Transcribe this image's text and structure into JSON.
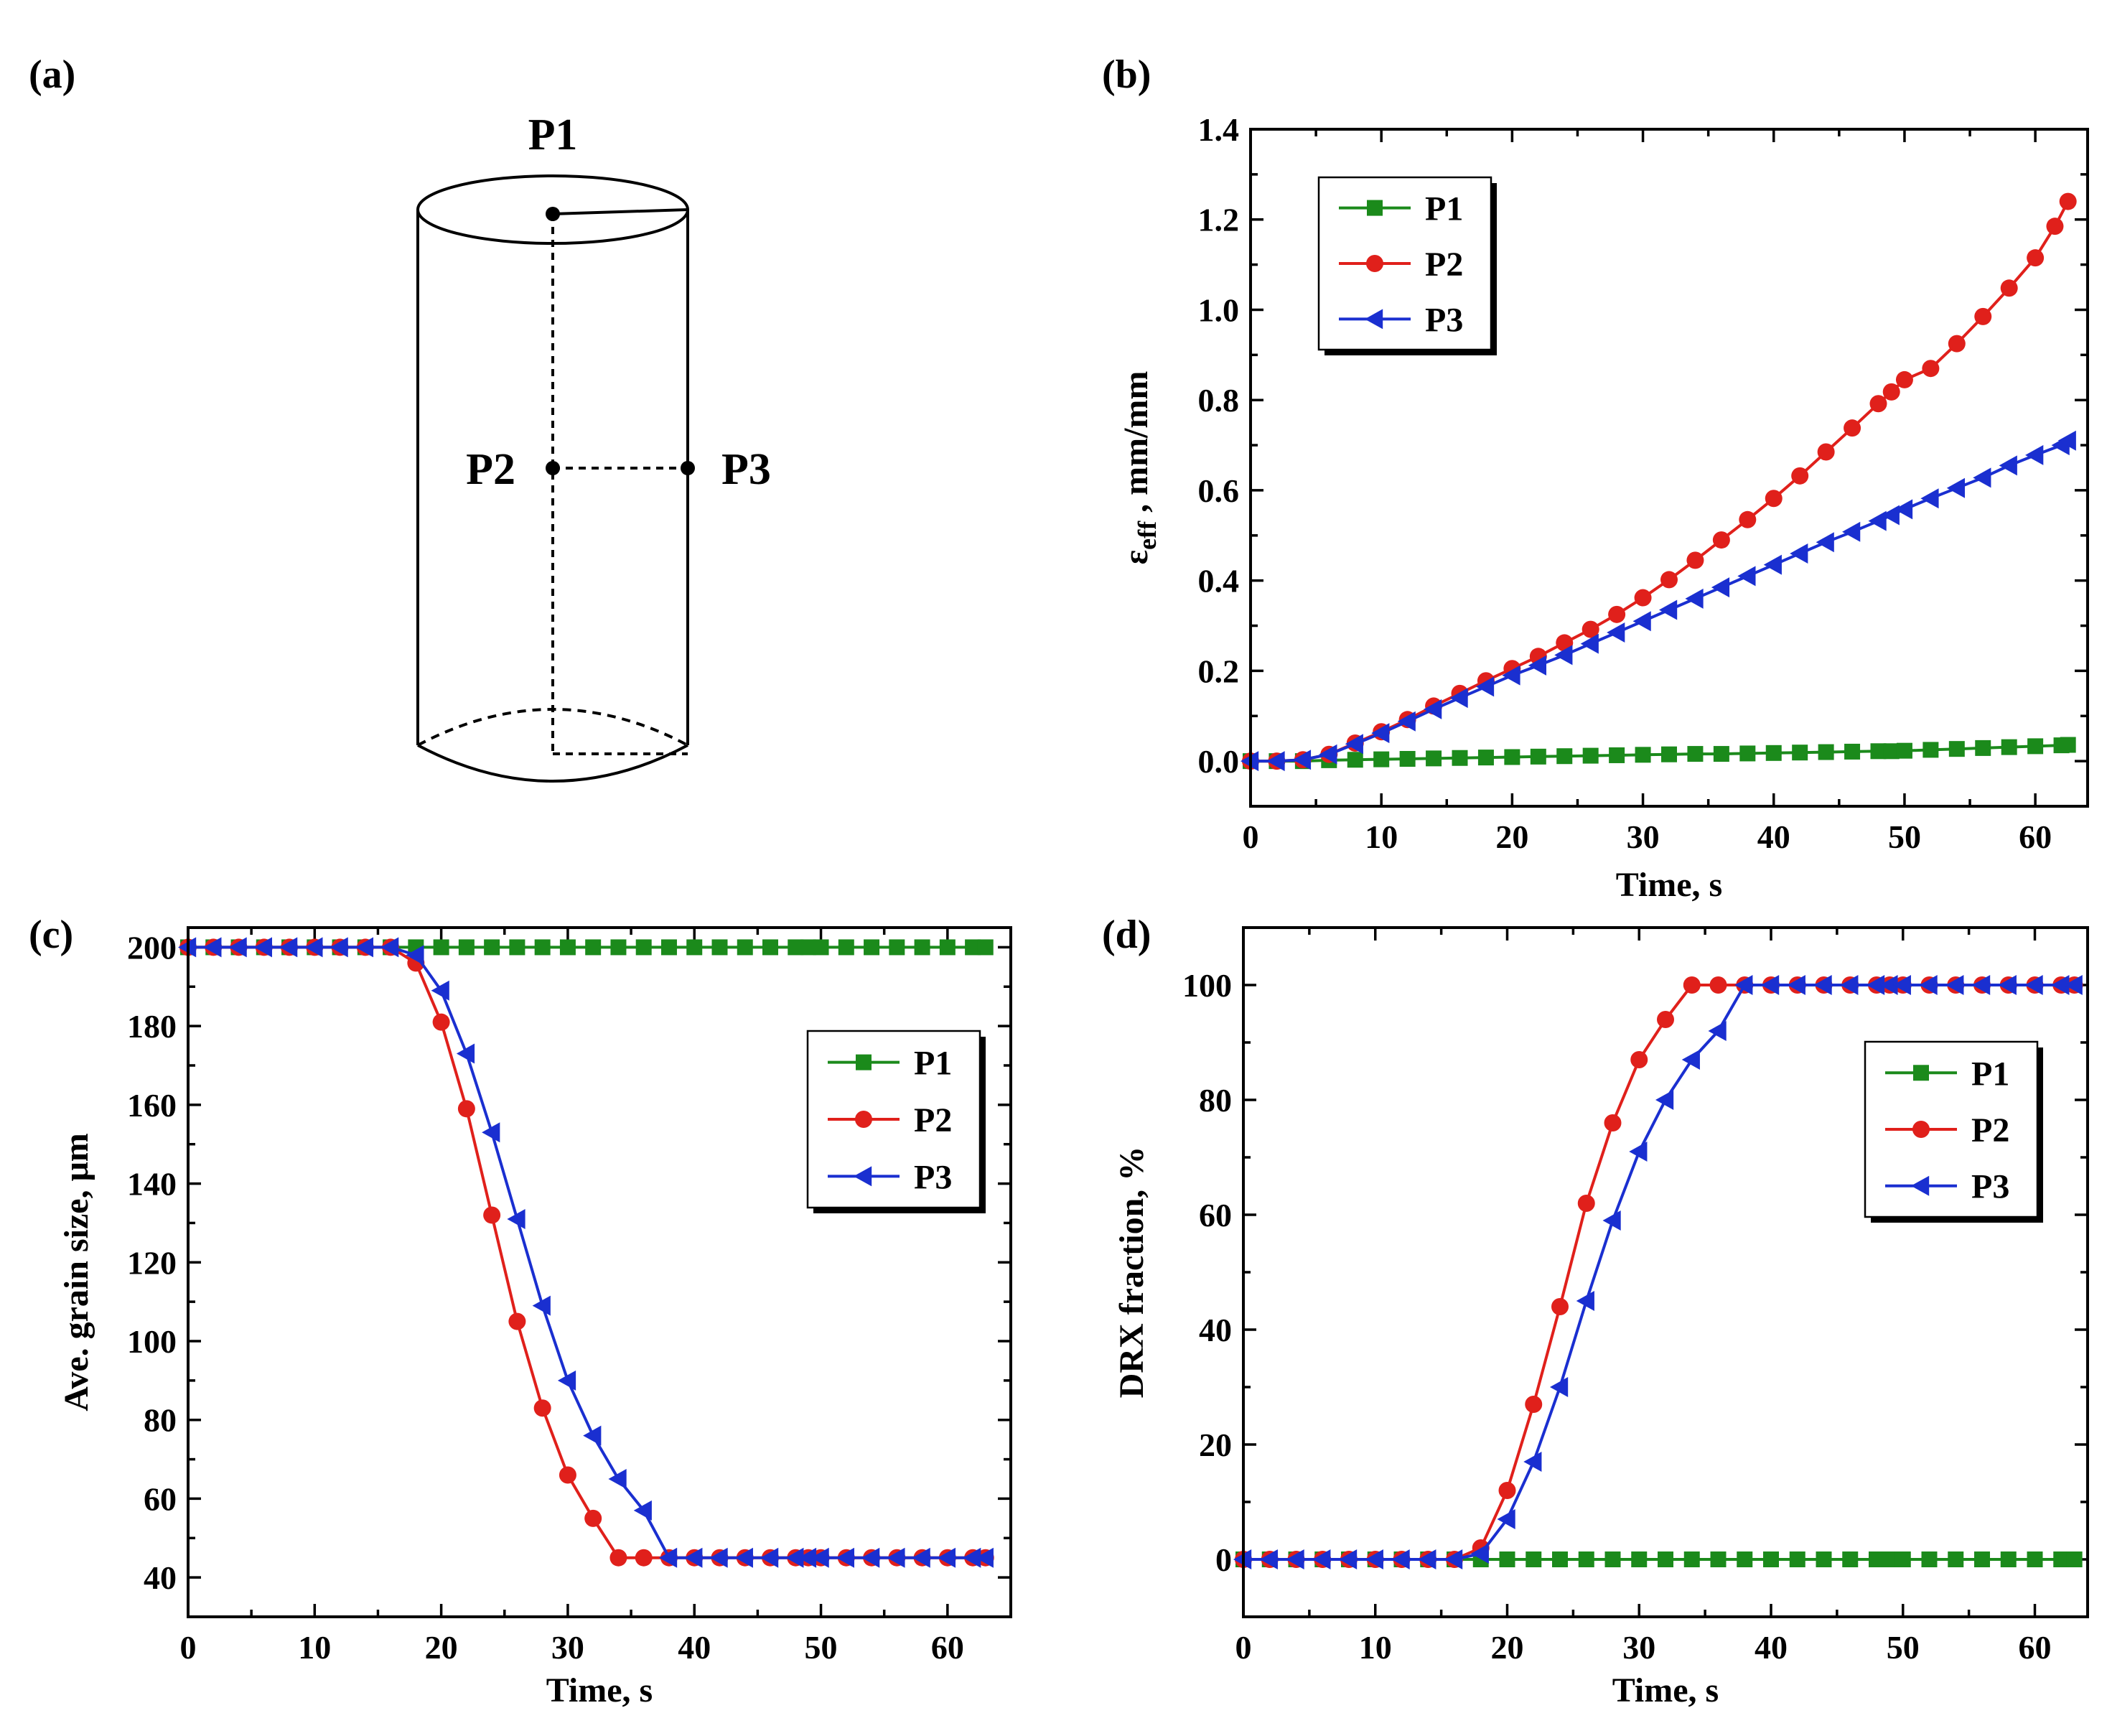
{
  "diagram": {
    "panel_label": "(a)",
    "labels": {
      "p1": "P1",
      "p2": "P2",
      "p3": "P3"
    }
  },
  "colors": {
    "P1": "#1b8a1b",
    "P2": "#e0201b",
    "P3": "#1a2fd0"
  },
  "chart_data": [
    {
      "id": "b",
      "panel_label": "(b)",
      "type": "line",
      "title": "",
      "xlabel": "Time, s",
      "ylabel_main": "ε",
      "ylabel_sub": "eff",
      "ylabel_rest": " , mm/mm",
      "xlim": [
        0,
        64
      ],
      "ylim": [
        -0.1,
        1.4
      ],
      "xticks": [
        0,
        10,
        20,
        30,
        40,
        50,
        60
      ],
      "yticks": [
        0.0,
        0.2,
        0.4,
        0.6,
        0.8,
        1.0,
        1.2,
        1.4
      ],
      "ytick_labels": [
        "0.0",
        "0.2",
        "0.4",
        "0.6",
        "0.8",
        "1.0",
        "1.2",
        "1.4"
      ],
      "legend_position": "top-left",
      "series": [
        {
          "name": "P1",
          "marker": "square",
          "x": [
            0,
            2,
            4,
            6,
            8,
            10,
            12,
            14,
            16,
            18,
            20,
            22,
            24,
            26,
            28,
            30,
            32,
            34,
            36,
            38,
            40,
            42,
            44,
            46,
            48,
            49,
            50,
            52,
            54,
            56,
            58,
            60,
            62,
            62.5
          ],
          "y": [
            0,
            0,
            0,
            0.002,
            0.003,
            0.004,
            0.005,
            0.006,
            0.007,
            0.008,
            0.009,
            0.01,
            0.011,
            0.012,
            0.013,
            0.014,
            0.015,
            0.016,
            0.016,
            0.017,
            0.018,
            0.019,
            0.02,
            0.021,
            0.022,
            0.022,
            0.023,
            0.025,
            0.027,
            0.029,
            0.031,
            0.033,
            0.035,
            0.036
          ]
        },
        {
          "name": "P2",
          "marker": "circle",
          "x": [
            0,
            2,
            4,
            6,
            8,
            10,
            12,
            14,
            16,
            18,
            20,
            22,
            24,
            26,
            28,
            30,
            32,
            34,
            36,
            38,
            40,
            42,
            44,
            46,
            48,
            49,
            50,
            52,
            54,
            56,
            58,
            60,
            61.5,
            62.5
          ],
          "y": [
            0,
            0,
            0.003,
            0.015,
            0.04,
            0.065,
            0.092,
            0.122,
            0.15,
            0.178,
            0.205,
            0.232,
            0.262,
            0.292,
            0.325,
            0.362,
            0.402,
            0.445,
            0.49,
            0.535,
            0.582,
            0.632,
            0.685,
            0.738,
            0.792,
            0.818,
            0.845,
            0.87,
            0.925,
            0.985,
            1.048,
            1.115,
            1.185,
            1.24
          ]
        },
        {
          "name": "P3",
          "marker": "triangle-left",
          "x": [
            0,
            2,
            4,
            6,
            8,
            10,
            12,
            14,
            16,
            18,
            20,
            22,
            24,
            26,
            28,
            30,
            32,
            34,
            36,
            38,
            40,
            42,
            44,
            46,
            48,
            49,
            50,
            52,
            54,
            56,
            58,
            60,
            62,
            62.5
          ],
          "y": [
            0,
            0,
            0.003,
            0.015,
            0.038,
            0.062,
            0.088,
            0.115,
            0.14,
            0.165,
            0.19,
            0.212,
            0.235,
            0.26,
            0.285,
            0.31,
            0.335,
            0.36,
            0.385,
            0.41,
            0.435,
            0.46,
            0.485,
            0.508,
            0.532,
            0.545,
            0.558,
            0.582,
            0.605,
            0.628,
            0.655,
            0.678,
            0.7,
            0.71
          ]
        }
      ]
    },
    {
      "id": "c",
      "panel_label": "(c)",
      "type": "line",
      "title": "",
      "xlabel": "Time, s",
      "ylabel": "Ave. grain size, μm",
      "xlim": [
        0,
        65
      ],
      "ylim": [
        30,
        205
      ],
      "xticks": [
        0,
        10,
        20,
        30,
        40,
        50,
        60
      ],
      "yticks": [
        40,
        60,
        80,
        100,
        120,
        140,
        160,
        180,
        200
      ],
      "ytick_labels": [
        "40",
        "60",
        "80",
        "100",
        "120",
        "140",
        "160",
        "180",
        "200"
      ],
      "legend_position": "top-right",
      "series": [
        {
          "name": "P1",
          "marker": "square",
          "x": [
            0,
            2,
            4,
            6,
            8,
            10,
            12,
            14,
            16,
            18,
            20,
            22,
            24,
            26,
            28,
            30,
            32,
            34,
            36,
            38,
            40,
            42,
            44,
            46,
            48,
            49,
            50,
            52,
            54,
            56,
            58,
            60,
            62,
            63
          ],
          "y": [
            200,
            200,
            200,
            200,
            200,
            200,
            200,
            200,
            200,
            200,
            200,
            200,
            200,
            200,
            200,
            200,
            200,
            200,
            200,
            200,
            200,
            200,
            200,
            200,
            200,
            200,
            200,
            200,
            200,
            200,
            200,
            200,
            200,
            200
          ]
        },
        {
          "name": "P2",
          "marker": "circle",
          "x": [
            0,
            2,
            4,
            6,
            8,
            10,
            12,
            14,
            16,
            18,
            20,
            22,
            24,
            26,
            28,
            30,
            32,
            34,
            36,
            38,
            40,
            42,
            44,
            46,
            48,
            49,
            50,
            52,
            54,
            56,
            58,
            60,
            62,
            63
          ],
          "y": [
            200,
            200,
            200,
            200,
            200,
            200,
            200,
            200,
            200,
            196,
            181,
            159,
            132,
            105,
            83,
            66,
            55,
            45,
            45,
            45,
            45,
            45,
            45,
            45,
            45,
            45,
            45,
            45,
            45,
            45,
            45,
            45,
            45,
            45
          ]
        },
        {
          "name": "P3",
          "marker": "triangle-left",
          "x": [
            0,
            2,
            4,
            6,
            8,
            10,
            12,
            14,
            16,
            18,
            20,
            22,
            24,
            26,
            28,
            30,
            32,
            34,
            36,
            38,
            40,
            42,
            44,
            46,
            48,
            49,
            50,
            52,
            54,
            56,
            58,
            60,
            62,
            63
          ],
          "y": [
            200,
            200,
            200,
            200,
            200,
            200,
            200,
            200,
            200,
            198,
            189,
            173,
            153,
            131,
            109,
            90,
            76,
            65,
            57,
            45,
            45,
            45,
            45,
            45,
            45,
            45,
            45,
            45,
            45,
            45,
            45,
            45,
            45,
            45
          ]
        }
      ]
    },
    {
      "id": "d",
      "panel_label": "(d)",
      "type": "line",
      "title": "",
      "xlabel": "Time, s",
      "ylabel": "DRX fraction, %",
      "xlim": [
        0,
        64
      ],
      "ylim": [
        -10,
        110
      ],
      "xticks": [
        0,
        10,
        20,
        30,
        40,
        50,
        60
      ],
      "yticks": [
        0,
        20,
        40,
        60,
        80,
        100
      ],
      "ytick_labels": [
        "0",
        "20",
        "40",
        "60",
        "80",
        "100"
      ],
      "legend_position": "right",
      "series": [
        {
          "name": "P1",
          "marker": "square",
          "x": [
            0,
            2,
            4,
            6,
            8,
            10,
            12,
            14,
            16,
            18,
            20,
            22,
            24,
            26,
            28,
            30,
            32,
            34,
            36,
            38,
            40,
            42,
            44,
            46,
            48,
            49,
            50,
            52,
            54,
            56,
            58,
            60,
            62,
            63
          ],
          "y": [
            0,
            0,
            0,
            0,
            0,
            0,
            0,
            0,
            0,
            0,
            0,
            0,
            0,
            0,
            0,
            0,
            0,
            0,
            0,
            0,
            0,
            0,
            0,
            0,
            0,
            0,
            0,
            0,
            0,
            0,
            0,
            0,
            0,
            0
          ]
        },
        {
          "name": "P2",
          "marker": "circle",
          "x": [
            0,
            2,
            4,
            6,
            8,
            10,
            12,
            14,
            16,
            18,
            20,
            22,
            24,
            26,
            28,
            30,
            32,
            34,
            36,
            38,
            40,
            42,
            44,
            46,
            48,
            49,
            50,
            52,
            54,
            56,
            58,
            60,
            62,
            63
          ],
          "y": [
            0,
            0,
            0,
            0,
            0,
            0,
            0,
            0,
            0,
            2,
            12,
            27,
            44,
            62,
            76,
            87,
            94,
            100,
            100,
            100,
            100,
            100,
            100,
            100,
            100,
            100,
            100,
            100,
            100,
            100,
            100,
            100,
            100,
            100
          ]
        },
        {
          "name": "P3",
          "marker": "triangle-left",
          "x": [
            0,
            2,
            4,
            6,
            8,
            10,
            12,
            14,
            16,
            18,
            20,
            22,
            24,
            26,
            28,
            30,
            32,
            34,
            36,
            38,
            40,
            42,
            44,
            46,
            48,
            49,
            50,
            52,
            54,
            56,
            58,
            60,
            62,
            63
          ],
          "y": [
            0,
            0,
            0,
            0,
            0,
            0,
            0,
            0,
            0,
            1,
            7,
            17,
            30,
            45,
            59,
            71,
            80,
            87,
            92,
            100,
            100,
            100,
            100,
            100,
            100,
            100,
            100,
            100,
            100,
            100,
            100,
            100,
            100,
            100
          ]
        }
      ]
    }
  ]
}
